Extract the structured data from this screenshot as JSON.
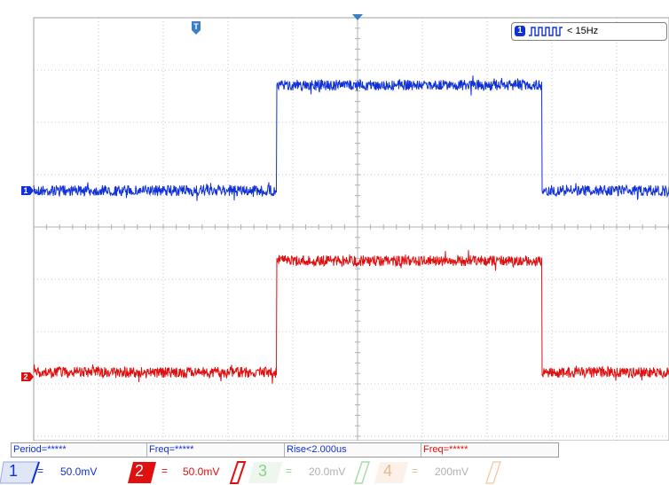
{
  "trigger": {
    "channel": "1",
    "label": "< 15Hz",
    "icon": "square-wave-icon"
  },
  "markers": {
    "trigger_pos": "T",
    "ch1": "1",
    "ch2": "2"
  },
  "measurements": [
    {
      "text": "Period=*****",
      "color": "#1030d8"
    },
    {
      "text": "Freq=*****",
      "color": "#1030d8"
    },
    {
      "text": "Rise<2.000us",
      "color": "#1030d8"
    },
    {
      "text": "Freq=*****",
      "color": "#e01010"
    }
  ],
  "channels": [
    {
      "num": "1",
      "eq": "=",
      "scale": "50.0mV",
      "color": "#1030d8",
      "active": true
    },
    {
      "num": "2",
      "eq": "=",
      "scale": "50.0mV",
      "color": "#e01010",
      "active": true
    },
    {
      "num": "3",
      "eq": "=",
      "scale": "20.0mV",
      "color": "#8ccf8c",
      "active": false
    },
    {
      "num": "4",
      "eq": "=",
      "scale": "200mV",
      "color": "#e8b890",
      "active": false
    }
  ],
  "colors": {
    "ch1": "#1030d8",
    "ch2": "#e01010",
    "grid": "#c8c8c8"
  }
}
